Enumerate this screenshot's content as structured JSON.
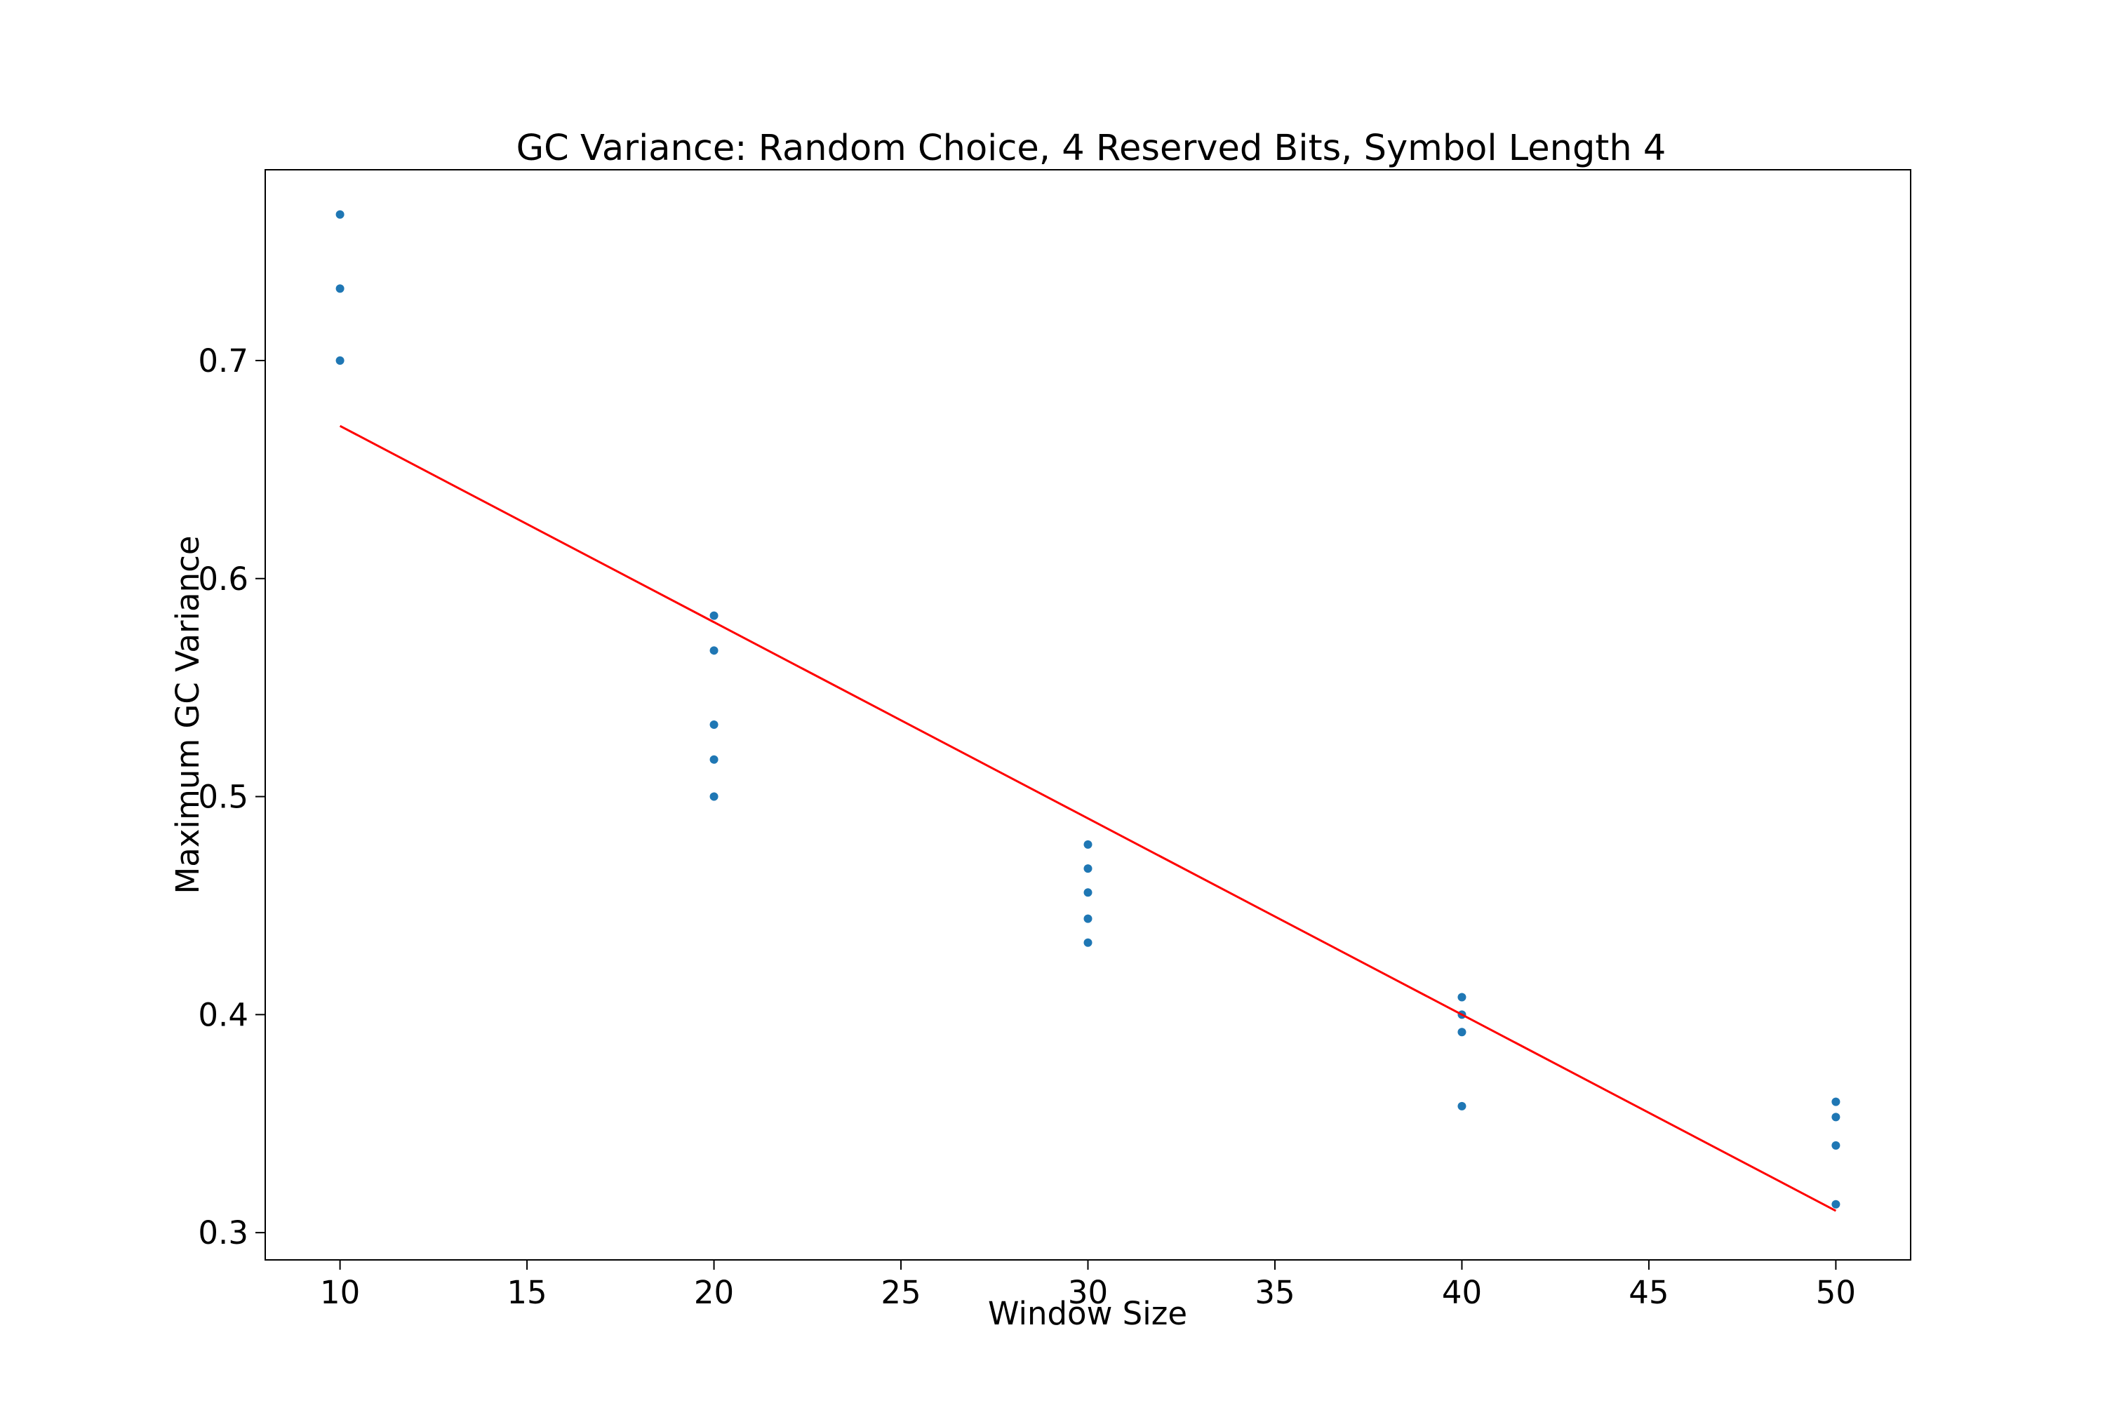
{
  "chart_data": {
    "type": "scatter",
    "title": "GC Variance: Random Choice, 4 Reserved Bits, Symbol Length 4",
    "xlabel": "Window Size",
    "ylabel": "Maximum GC Variance",
    "xlim": [
      8,
      52
    ],
    "ylim": [
      0.2875,
      0.7875
    ],
    "xticks": [
      10,
      15,
      20,
      25,
      30,
      35,
      40,
      45,
      50
    ],
    "yticks": [
      0.3,
      0.4,
      0.5,
      0.6,
      0.7
    ],
    "ytick_labels": [
      "0.3",
      "0.4",
      "0.5",
      "0.6",
      "0.7"
    ],
    "grid": false,
    "colors": {
      "points": "#1f77b4",
      "trendline": "#ff0000",
      "axes": "#000000"
    },
    "series": [
      {
        "kind": "points",
        "x": [
          10,
          10,
          10,
          20,
          20,
          20,
          20,
          20,
          30,
          30,
          30,
          30,
          30,
          40,
          40,
          40,
          40,
          50,
          50,
          50,
          50
        ],
        "y": [
          0.767,
          0.733,
          0.7,
          0.583,
          0.567,
          0.533,
          0.517,
          0.5,
          0.478,
          0.467,
          0.456,
          0.444,
          0.433,
          0.408,
          0.4,
          0.392,
          0.358,
          0.36,
          0.353,
          0.34,
          0.313
        ]
      },
      {
        "kind": "trendline",
        "x": [
          10,
          50
        ],
        "y": [
          0.67,
          0.31
        ]
      }
    ]
  }
}
